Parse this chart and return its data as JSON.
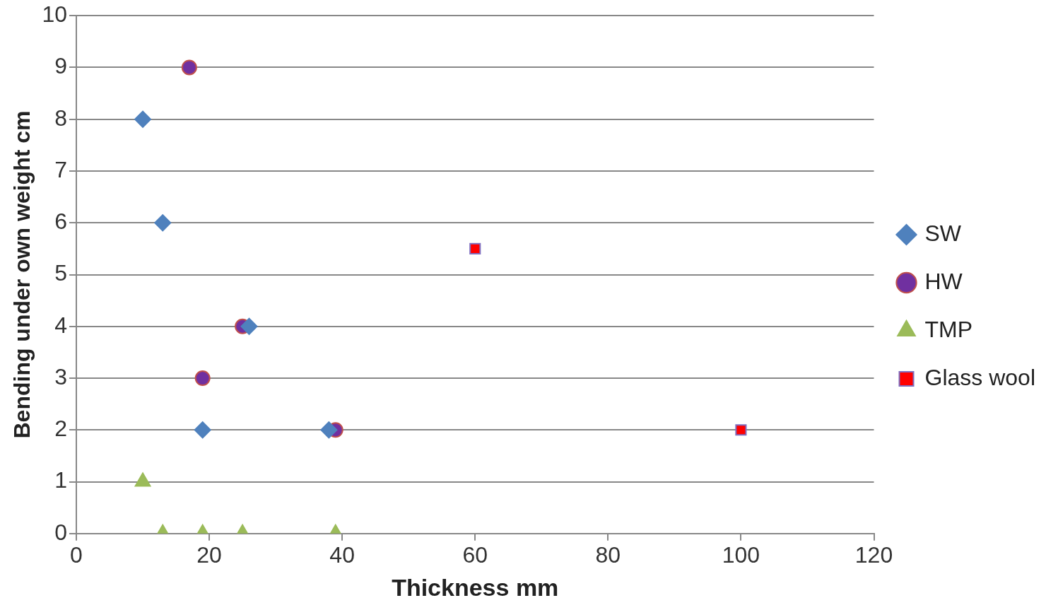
{
  "chart_data": {
    "type": "scatter",
    "xlabel": "Thickness mm",
    "ylabel": "Bending under own weight cm",
    "xlim": [
      0,
      120
    ],
    "xticks": [
      0,
      20,
      40,
      60,
      80,
      100,
      120
    ],
    "ylim": [
      0,
      10
    ],
    "yticks": [
      0,
      1,
      2,
      3,
      4,
      5,
      6,
      7,
      8,
      9,
      10
    ],
    "grid": "y",
    "legend": "right",
    "series": [
      {
        "name": "SW",
        "color": "#4f81bd",
        "marker": "diamond",
        "x": [
          10,
          13,
          26,
          19,
          38
        ],
        "values": [
          8,
          6,
          4,
          2,
          2
        ]
      },
      {
        "name": "HW",
        "color": "#7030a0",
        "marker": "circle",
        "x": [
          17,
          25,
          19,
          39
        ],
        "values": [
          9,
          4,
          3,
          2
        ]
      },
      {
        "name": "TMP",
        "color": "#9bbb59",
        "marker": "triangle",
        "x": [
          10,
          13,
          19,
          25,
          39
        ],
        "values": [
          1,
          0,
          0,
          0,
          0
        ]
      },
      {
        "name": "Glass wool",
        "color": "#ff0000",
        "marker": "square",
        "x": [
          60,
          100
        ],
        "values": [
          5.5,
          2
        ]
      }
    ]
  }
}
